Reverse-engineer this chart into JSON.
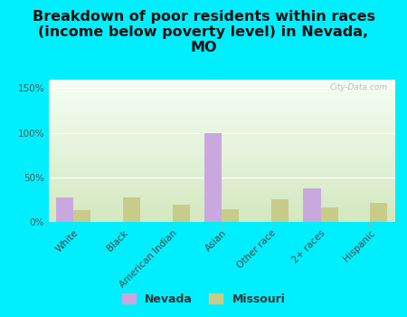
{
  "title": "Breakdown of poor residents within races\n(income below poverty level) in Nevada,\nMO",
  "categories": [
    "White",
    "Black",
    "American Indian",
    "Asian",
    "Other race",
    "2+ races",
    "Hispanic"
  ],
  "nevada_values": [
    27,
    0,
    0,
    100,
    0,
    38,
    0
  ],
  "missouri_values": [
    13,
    27,
    19,
    14,
    25,
    16,
    21
  ],
  "nevada_color": "#c9a8e0",
  "missouri_color": "#c8cc8a",
  "background_outer": "#00efff",
  "ylim": [
    0,
    160
  ],
  "yticks": [
    0,
    50,
    100,
    150
  ],
  "ytick_labels": [
    "0%",
    "50%",
    "100%",
    "150%"
  ],
  "bar_width": 0.35,
  "title_fontsize": 11.5,
  "tick_fontsize": 7.5,
  "legend_fontsize": 9,
  "watermark": "City-Data.com"
}
